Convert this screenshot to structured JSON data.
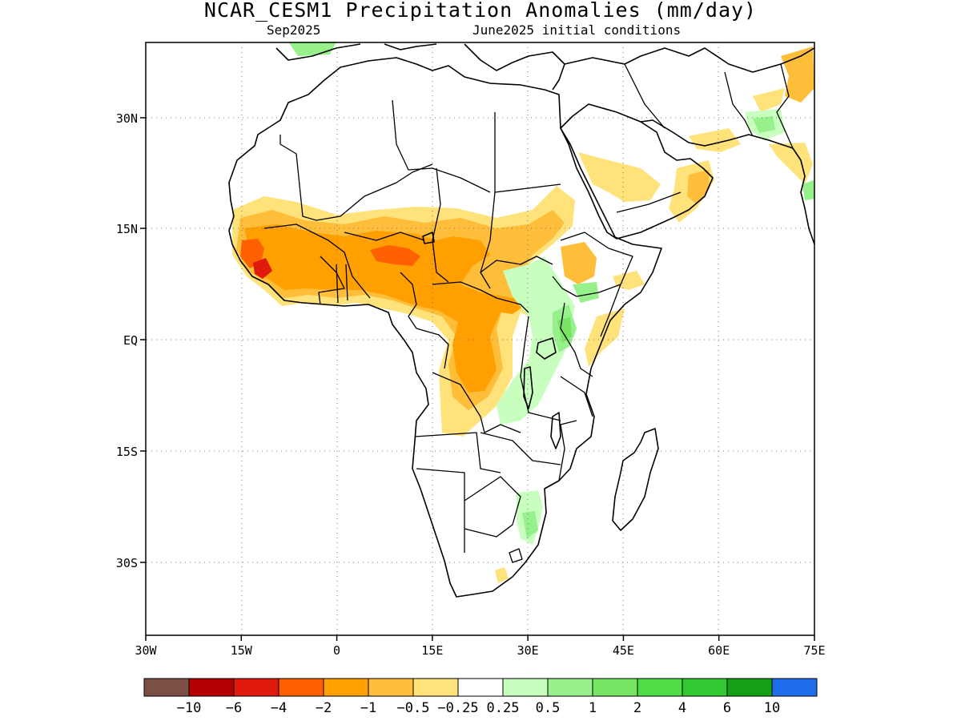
{
  "header": {
    "title": "NCAR_CESM1 Precipitation Anomalies (mm/day)",
    "valid_month": "Sep2025",
    "initial_conditions": "June2025 initial conditions"
  },
  "map": {
    "region": "Africa",
    "lon_range": [
      -30,
      75
    ],
    "lat_range": [
      -40,
      42
    ],
    "x_ticks": [
      "30W",
      "15W",
      "0",
      "15E",
      "30E",
      "45E",
      "60E",
      "75E"
    ],
    "y_ticks": [
      "30N",
      "15N",
      "EQ",
      "15S",
      "30S"
    ],
    "grid": "dotted",
    "coastline_color": "#000000"
  },
  "colorbar": {
    "colors": [
      "#7b4f43",
      "#b40000",
      "#e01a0c",
      "#ff6000",
      "#ff9f00",
      "#ffbe3a",
      "#ffe27a",
      "#ffffff",
      "#c8ffbe",
      "#96f08c",
      "#78e664",
      "#50dc46",
      "#32c832",
      "#14a014",
      "#1e6eeb"
    ],
    "labels": [
      "−10",
      "−6",
      "−4",
      "−2",
      "−1",
      "−0.5",
      "−0.25",
      "0.25",
      "0.5",
      "1",
      "2",
      "4",
      "6",
      "10"
    ]
  },
  "anomaly_regions": [
    {
      "name": "sahel-dry",
      "sign": "dry",
      "level": "-1"
    },
    {
      "name": "nigeria-core",
      "sign": "dry",
      "level": "-2"
    },
    {
      "name": "congo-dry",
      "sign": "dry",
      "level": "-1"
    },
    {
      "name": "arabia-dry",
      "sign": "dry",
      "level": "-0.5"
    },
    {
      "name": "east-africa-wet",
      "sign": "wet",
      "level": "1"
    },
    {
      "name": "southeast-africa-wet",
      "sign": "wet",
      "level": "0.5"
    },
    {
      "name": "iran-wet",
      "sign": "wet",
      "level": "1"
    }
  ]
}
